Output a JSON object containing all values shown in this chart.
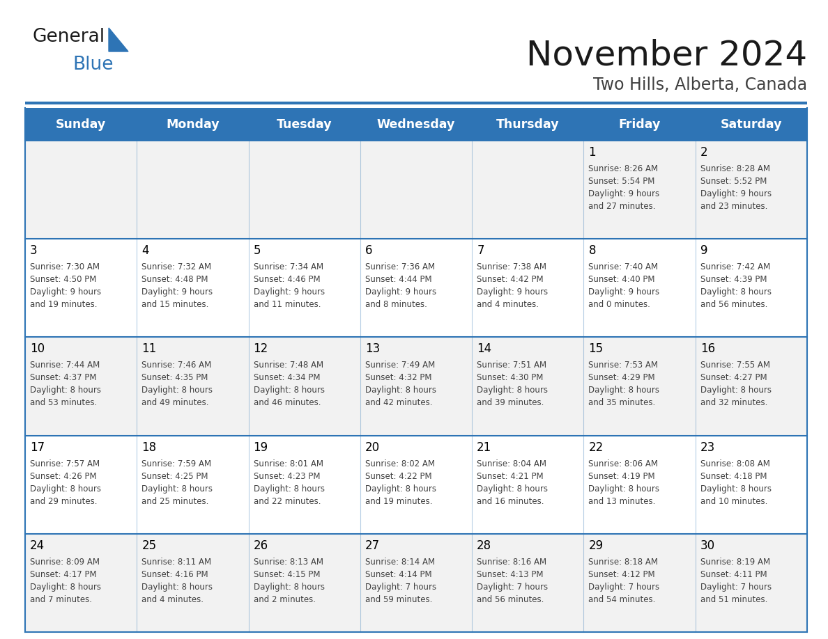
{
  "title": "November 2024",
  "subtitle": "Two Hills, Alberta, Canada",
  "header_color": "#2E74B5",
  "header_text_color": "#FFFFFF",
  "cell_bg_color": "#F2F2F2",
  "cell_bg_alt_color": "#FFFFFF",
  "day_headers": [
    "Sunday",
    "Monday",
    "Tuesday",
    "Wednesday",
    "Thursday",
    "Friday",
    "Saturday"
  ],
  "background_color": "#FFFFFF",
  "line_color": "#2E74B5",
  "day_number_color": "#000000",
  "cell_text_color": "#404040",
  "logo_text1": "General",
  "logo_text2": "Blue",
  "logo_triangle_color": "#2E74B5",
  "weeks": [
    [
      {
        "day": "",
        "info": ""
      },
      {
        "day": "",
        "info": ""
      },
      {
        "day": "",
        "info": ""
      },
      {
        "day": "",
        "info": ""
      },
      {
        "day": "",
        "info": ""
      },
      {
        "day": "1",
        "info": "Sunrise: 8:26 AM\nSunset: 5:54 PM\nDaylight: 9 hours\nand 27 minutes."
      },
      {
        "day": "2",
        "info": "Sunrise: 8:28 AM\nSunset: 5:52 PM\nDaylight: 9 hours\nand 23 minutes."
      }
    ],
    [
      {
        "day": "3",
        "info": "Sunrise: 7:30 AM\nSunset: 4:50 PM\nDaylight: 9 hours\nand 19 minutes."
      },
      {
        "day": "4",
        "info": "Sunrise: 7:32 AM\nSunset: 4:48 PM\nDaylight: 9 hours\nand 15 minutes."
      },
      {
        "day": "5",
        "info": "Sunrise: 7:34 AM\nSunset: 4:46 PM\nDaylight: 9 hours\nand 11 minutes."
      },
      {
        "day": "6",
        "info": "Sunrise: 7:36 AM\nSunset: 4:44 PM\nDaylight: 9 hours\nand 8 minutes."
      },
      {
        "day": "7",
        "info": "Sunrise: 7:38 AM\nSunset: 4:42 PM\nDaylight: 9 hours\nand 4 minutes."
      },
      {
        "day": "8",
        "info": "Sunrise: 7:40 AM\nSunset: 4:40 PM\nDaylight: 9 hours\nand 0 minutes."
      },
      {
        "day": "9",
        "info": "Sunrise: 7:42 AM\nSunset: 4:39 PM\nDaylight: 8 hours\nand 56 minutes."
      }
    ],
    [
      {
        "day": "10",
        "info": "Sunrise: 7:44 AM\nSunset: 4:37 PM\nDaylight: 8 hours\nand 53 minutes."
      },
      {
        "day": "11",
        "info": "Sunrise: 7:46 AM\nSunset: 4:35 PM\nDaylight: 8 hours\nand 49 minutes."
      },
      {
        "day": "12",
        "info": "Sunrise: 7:48 AM\nSunset: 4:34 PM\nDaylight: 8 hours\nand 46 minutes."
      },
      {
        "day": "13",
        "info": "Sunrise: 7:49 AM\nSunset: 4:32 PM\nDaylight: 8 hours\nand 42 minutes."
      },
      {
        "day": "14",
        "info": "Sunrise: 7:51 AM\nSunset: 4:30 PM\nDaylight: 8 hours\nand 39 minutes."
      },
      {
        "day": "15",
        "info": "Sunrise: 7:53 AM\nSunset: 4:29 PM\nDaylight: 8 hours\nand 35 minutes."
      },
      {
        "day": "16",
        "info": "Sunrise: 7:55 AM\nSunset: 4:27 PM\nDaylight: 8 hours\nand 32 minutes."
      }
    ],
    [
      {
        "day": "17",
        "info": "Sunrise: 7:57 AM\nSunset: 4:26 PM\nDaylight: 8 hours\nand 29 minutes."
      },
      {
        "day": "18",
        "info": "Sunrise: 7:59 AM\nSunset: 4:25 PM\nDaylight: 8 hours\nand 25 minutes."
      },
      {
        "day": "19",
        "info": "Sunrise: 8:01 AM\nSunset: 4:23 PM\nDaylight: 8 hours\nand 22 minutes."
      },
      {
        "day": "20",
        "info": "Sunrise: 8:02 AM\nSunset: 4:22 PM\nDaylight: 8 hours\nand 19 minutes."
      },
      {
        "day": "21",
        "info": "Sunrise: 8:04 AM\nSunset: 4:21 PM\nDaylight: 8 hours\nand 16 minutes."
      },
      {
        "day": "22",
        "info": "Sunrise: 8:06 AM\nSunset: 4:19 PM\nDaylight: 8 hours\nand 13 minutes."
      },
      {
        "day": "23",
        "info": "Sunrise: 8:08 AM\nSunset: 4:18 PM\nDaylight: 8 hours\nand 10 minutes."
      }
    ],
    [
      {
        "day": "24",
        "info": "Sunrise: 8:09 AM\nSunset: 4:17 PM\nDaylight: 8 hours\nand 7 minutes."
      },
      {
        "day": "25",
        "info": "Sunrise: 8:11 AM\nSunset: 4:16 PM\nDaylight: 8 hours\nand 4 minutes."
      },
      {
        "day": "26",
        "info": "Sunrise: 8:13 AM\nSunset: 4:15 PM\nDaylight: 8 hours\nand 2 minutes."
      },
      {
        "day": "27",
        "info": "Sunrise: 8:14 AM\nSunset: 4:14 PM\nDaylight: 7 hours\nand 59 minutes."
      },
      {
        "day": "28",
        "info": "Sunrise: 8:16 AM\nSunset: 4:13 PM\nDaylight: 7 hours\nand 56 minutes."
      },
      {
        "day": "29",
        "info": "Sunrise: 8:18 AM\nSunset: 4:12 PM\nDaylight: 7 hours\nand 54 minutes."
      },
      {
        "day": "30",
        "info": "Sunrise: 8:19 AM\nSunset: 4:11 PM\nDaylight: 7 hours\nand 51 minutes."
      }
    ]
  ]
}
